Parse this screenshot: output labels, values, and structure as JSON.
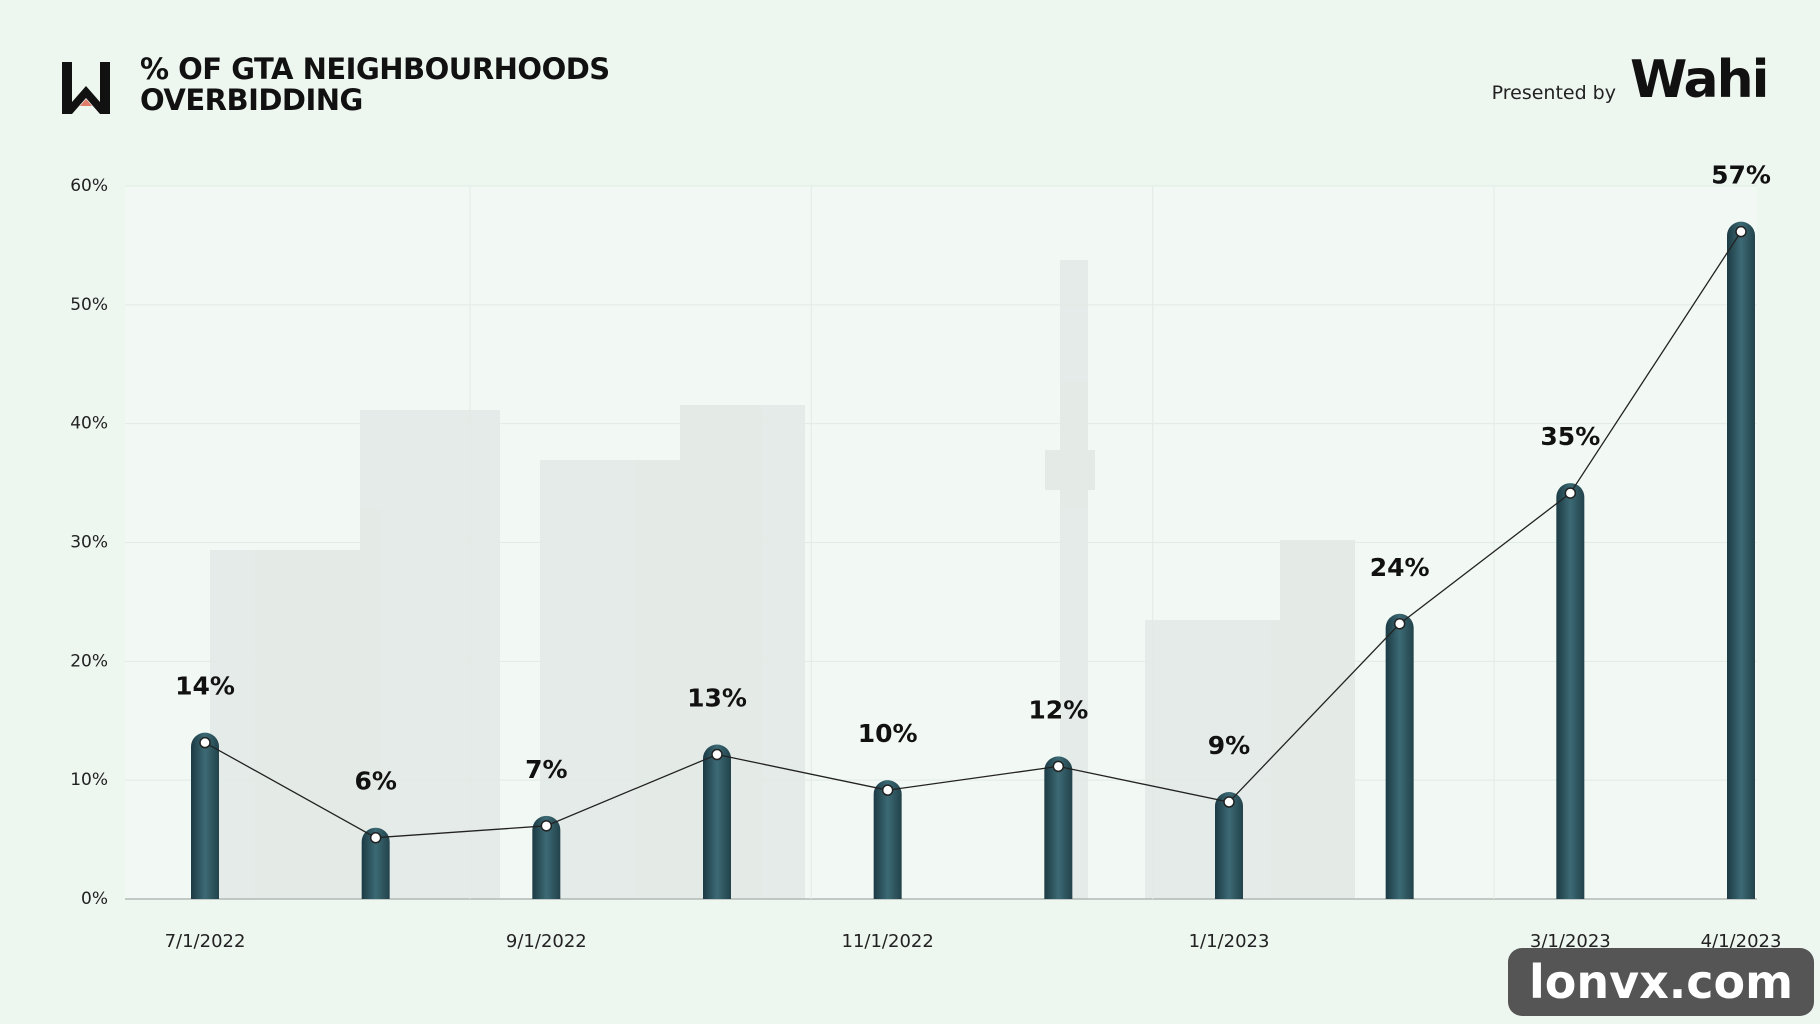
{
  "header": {
    "title": "% OF GTA NEIGHBOURHOODS OVERBIDDING",
    "presented_by": "Presented by",
    "brand": "Wahi"
  },
  "watermark": "lonvx.com",
  "chart_data": {
    "type": "bar",
    "categories": [
      "7/1/2022",
      null,
      "9/1/2022",
      null,
      "11/1/2022",
      null,
      "1/1/2023",
      null,
      "3/1/2023",
      "4/1/2023"
    ],
    "values": [
      14,
      6,
      7,
      13,
      10,
      12,
      9,
      24,
      35,
      57
    ],
    "value_labels": [
      "14%",
      "6%",
      "7%",
      "13%",
      "10%",
      "12%",
      "9%",
      "24%",
      "35%",
      "57%"
    ],
    "color": "#1f3f48",
    "line_color": "#222222",
    "ylim": [
      0,
      60
    ],
    "yticks": [
      {
        "value": 0,
        "label": "0%"
      },
      {
        "value": 10,
        "label": "10%"
      },
      {
        "value": 20,
        "label": "20%"
      },
      {
        "value": 30,
        "label": "30%"
      },
      {
        "value": 40,
        "label": "40%"
      },
      {
        "value": 50,
        "label": "50%"
      },
      {
        "value": 60,
        "label": "60%"
      }
    ],
    "grid": true
  }
}
